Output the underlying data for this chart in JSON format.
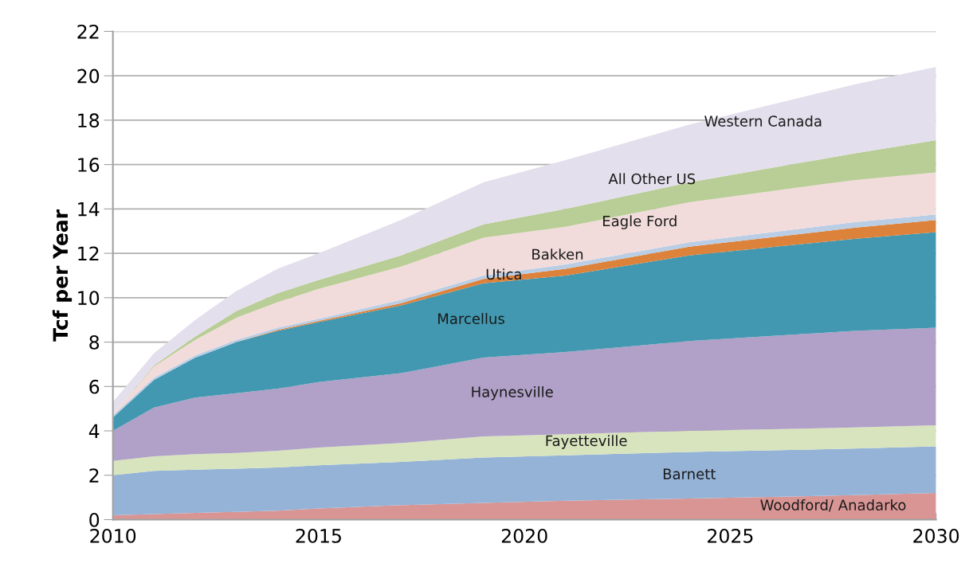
{
  "chart_data": {
    "type": "area",
    "stacked": true,
    "ylabel": "Tcf per Year",
    "x": [
      2010,
      2011,
      2012,
      2013,
      2014,
      2015,
      2017,
      2019,
      2021,
      2024,
      2028,
      2030
    ],
    "series": [
      {
        "name": "Woodford/ Anadarko",
        "color": "#d99594",
        "values": [
          0.2,
          0.25,
          0.3,
          0.35,
          0.4,
          0.5,
          0.65,
          0.75,
          0.85,
          0.95,
          1.1,
          1.2
        ]
      },
      {
        "name": "Barnett",
        "color": "#95b3d7",
        "values": [
          1.8,
          1.95,
          1.95,
          1.95,
          1.95,
          1.95,
          1.95,
          2.05,
          2.05,
          2.1,
          2.1,
          2.1
        ]
      },
      {
        "name": "Fayetteville",
        "color": "#d7e4bd",
        "values": [
          0.65,
          0.65,
          0.7,
          0.7,
          0.75,
          0.8,
          0.85,
          0.95,
          0.95,
          0.95,
          0.95,
          0.95
        ]
      },
      {
        "name": "Haynesville",
        "color": "#b1a0c7",
        "values": [
          1.35,
          2.2,
          2.55,
          2.7,
          2.8,
          2.95,
          3.15,
          3.55,
          3.7,
          4.05,
          4.35,
          4.4
        ]
      },
      {
        "name": "Marcellus",
        "color": "#4198b0",
        "values": [
          0.6,
          1.25,
          1.8,
          2.3,
          2.6,
          2.7,
          3.05,
          3.35,
          3.45,
          3.85,
          4.15,
          4.3
        ]
      },
      {
        "name": "Utica",
        "color": "#dd823b",
        "values": [
          0,
          0,
          0,
          0,
          0.05,
          0.05,
          0.1,
          0.2,
          0.3,
          0.4,
          0.5,
          0.55
        ]
      },
      {
        "name": "Bakken",
        "color": "#b9cde5",
        "values": [
          0.1,
          0.1,
          0.1,
          0.1,
          0.1,
          0.1,
          0.15,
          0.15,
          0.2,
          0.2,
          0.25,
          0.25
        ]
      },
      {
        "name": "Eagle Ford",
        "color": "#f2dcdb",
        "values": [
          0.05,
          0.5,
          0.7,
          1.0,
          1.15,
          1.35,
          1.5,
          1.7,
          1.7,
          1.8,
          1.9,
          1.9
        ]
      },
      {
        "name": "All Other US",
        "color": "#b9cd96",
        "values": [
          0,
          0.05,
          0.15,
          0.3,
          0.4,
          0.4,
          0.5,
          0.6,
          0.8,
          0.9,
          1.2,
          1.45
        ]
      },
      {
        "name": "Western Canada",
        "color": "#e4dfec",
        "values": [
          0.55,
          0.55,
          0.75,
          0.9,
          1.1,
          1.2,
          1.6,
          1.9,
          2.2,
          2.6,
          3.1,
          3.3
        ]
      }
    ],
    "xlim": [
      2010,
      2030
    ],
    "xticks": [
      2010,
      {
        "value": 2011,
        "label": null
      },
      {
        "value": 2012,
        "label": null
      },
      {
        "value": 2013,
        "label": null
      },
      {
        "value": 2014,
        "label": null
      },
      2015,
      {
        "value": 2016,
        "label": null
      },
      {
        "value": 2017,
        "label": null
      },
      {
        "value": 2018,
        "label": null
      },
      {
        "value": 2019,
        "label": null
      },
      2020,
      {
        "value": 2021,
        "label": null
      },
      {
        "value": 2022,
        "label": null
      },
      {
        "value": 2023,
        "label": null
      },
      {
        "value": 2024,
        "label": null
      },
      2025,
      {
        "value": 2026,
        "label": null
      },
      {
        "value": 2027,
        "label": null
      },
      {
        "value": 2028,
        "label": null
      },
      {
        "value": 2029,
        "label": null
      },
      2030
    ],
    "ylim": [
      0,
      22
    ],
    "yticks": [
      0,
      2,
      4,
      6,
      8,
      10,
      12,
      14,
      16,
      18,
      20,
      22
    ],
    "grid": "y",
    "legend": false
  }
}
